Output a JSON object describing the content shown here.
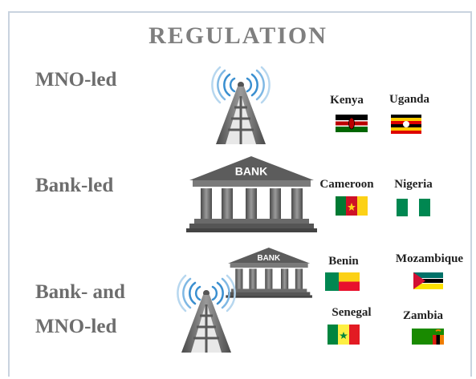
{
  "title": "REGULATION",
  "rows": [
    {
      "label": "MNO-led",
      "countries": [
        "Kenya",
        "Uganda"
      ]
    },
    {
      "label": "Bank-led",
      "icon_text": "BANK",
      "countries": [
        "Cameroon",
        "Nigeria"
      ]
    },
    {
      "label": "Bank- and MNO-led",
      "icon_text": "BANK",
      "countries": [
        "Benin",
        "Mozambique",
        "Senegal",
        "Zambia"
      ]
    }
  ]
}
